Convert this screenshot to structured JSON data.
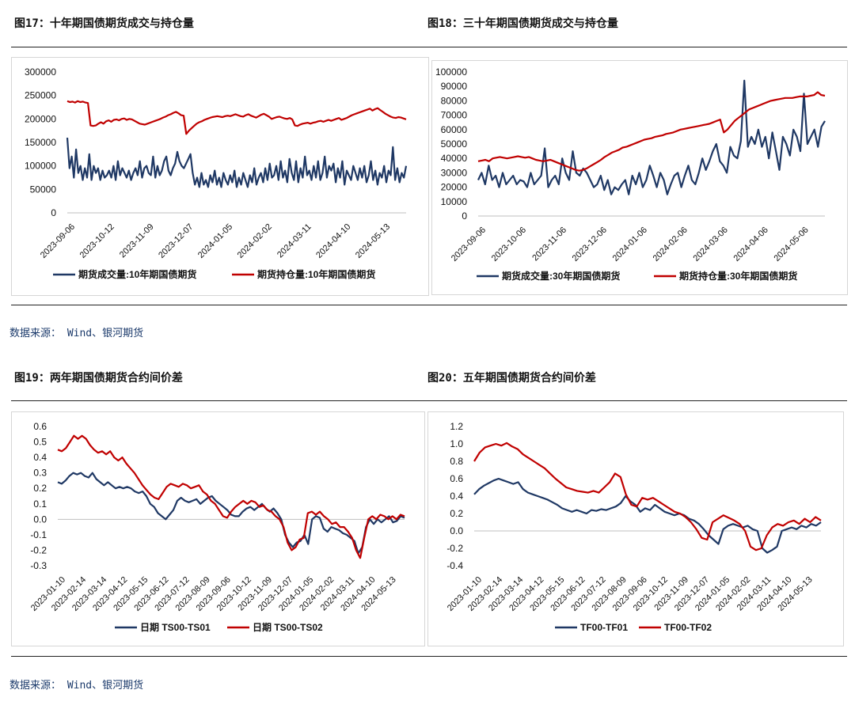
{
  "section1": {
    "left_title": "图17：十年期国债期货成交与持仓量",
    "right_title": "图18：三十年期国债期货成交与持仓量",
    "source": "数据来源： Wind、银河期货"
  },
  "section2": {
    "left_title": "图19：两年期国债期货合约间价差",
    "right_title": "图20：五年期国债期货合约间价差",
    "source": "数据来源： Wind、银河期货"
  },
  "colors": {
    "navy": "#1f3864",
    "red": "#c00000",
    "accent": "#1b3a6b"
  },
  "chart_data": [
    {
      "type": "line",
      "xlabels": [
        "2023-09-06",
        "2023-10-12",
        "2023-11-09",
        "2023-12-07",
        "2024-01-05",
        "2024-02-02",
        "2024-03-11",
        "2024-04-10",
        "2024-05-13"
      ],
      "ylim": [
        0,
        300000
      ],
      "yticks": [
        "300000",
        "250000",
        "200000",
        "150000",
        "100000",
        "50000",
        "0"
      ],
      "series": [
        {
          "name": "期货成交量:10年期国债期货",
          "color": "#1f3864",
          "values": [
            160000,
            95000,
            120000,
            75000,
            135000,
            85000,
            100000,
            70000,
            95000,
            75000,
            125000,
            70000,
            100000,
            85000,
            95000,
            70000,
            90000,
            75000,
            80000,
            90000,
            75000,
            100000,
            70000,
            110000,
            80000,
            95000,
            85000,
            75000,
            90000,
            70000,
            85000,
            95000,
            80000,
            110000,
            75000,
            95000,
            100000,
            85000,
            80000,
            120000,
            75000,
            100000,
            80000,
            90000,
            110000,
            120000,
            90000,
            80000,
            95000,
            105000,
            130000,
            110000,
            100000,
            95000,
            105000,
            115000,
            125000,
            85000,
            60000,
            75000,
            55000,
            85000,
            60000,
            70000,
            55000,
            80000,
            65000,
            90000,
            60000,
            75000,
            55000,
            85000,
            70000,
            60000,
            80000,
            65000,
            90000,
            55000,
            75000,
            60000,
            85000,
            70000,
            55000,
            80000,
            65000,
            95000,
            60000,
            75000,
            85000,
            65000,
            95000,
            70000,
            105000,
            75000,
            80000,
            100000,
            70000,
            110000,
            75000,
            90000,
            65000,
            115000,
            85000,
            70000,
            110000,
            65000,
            95000,
            75000,
            120000,
            80000,
            90000,
            70000,
            100000,
            75000,
            110000,
            70000,
            85000,
            120000,
            75000,
            100000,
            90000,
            105000,
            65000,
            95000,
            75000,
            110000,
            60000,
            90000,
            80000,
            70000,
            100000,
            85000,
            70000,
            95000,
            75000,
            100000,
            65000,
            80000,
            110000,
            70000,
            90000,
            60000,
            85000,
            75000,
            100000,
            65000,
            90000,
            80000,
            140000,
            70000,
            95000,
            65000,
            85000,
            75000,
            100000
          ]
        },
        {
          "name": "期货持仓量:10年期国债期货",
          "color": "#c00000",
          "values": [
            238000,
            236000,
            237000,
            235000,
            238000,
            236000,
            237000,
            235000,
            234000,
            186000,
            185000,
            186000,
            190000,
            193000,
            190000,
            195000,
            197000,
            194000,
            198000,
            199000,
            197000,
            200000,
            201000,
            198000,
            200000,
            199000,
            196000,
            193000,
            190000,
            189000,
            188000,
            190000,
            192000,
            194000,
            196000,
            198000,
            200000,
            203000,
            205000,
            208000,
            210000,
            213000,
            215000,
            212000,
            208000,
            207000,
            168000,
            175000,
            180000,
            185000,
            190000,
            193000,
            195000,
            198000,
            200000,
            202000,
            204000,
            205000,
            206000,
            205000,
            204000,
            206000,
            207000,
            206000,
            208000,
            210000,
            208000,
            206000,
            205000,
            208000,
            210000,
            207000,
            205000,
            203000,
            206000,
            209000,
            211000,
            208000,
            205000,
            200000,
            202000,
            204000,
            205000,
            203000,
            201000,
            200000,
            202000,
            199000,
            186000,
            185000,
            188000,
            190000,
            191000,
            192000,
            190000,
            192000,
            193000,
            195000,
            196000,
            194000,
            196000,
            198000,
            196000,
            198000,
            200000,
            202000,
            198000,
            200000,
            202000,
            205000,
            208000,
            210000,
            212000,
            214000,
            216000,
            218000,
            220000,
            222000,
            218000,
            221000,
            223000,
            219000,
            215000,
            211000,
            208000,
            205000,
            203000,
            202000,
            204000,
            203000,
            201000,
            199000
          ]
        }
      ],
      "legend_position": "bottom"
    },
    {
      "type": "line",
      "xlabels": [
        "2023-09-06",
        "2023-10-06",
        "2023-11-06",
        "2023-12-06",
        "2024-01-06",
        "2024-02-06",
        "2024-03-06",
        "2024-04-06",
        "2024-05-06"
      ],
      "ylim": [
        0,
        100000
      ],
      "yticks": [
        "100000",
        "90000",
        "80000",
        "70000",
        "60000",
        "50000",
        "40000",
        "30000",
        "20000",
        "10000",
        "0"
      ],
      "series": [
        {
          "name": "期货成交量:30年期国债期货",
          "color": "#1f3864",
          "values": [
            25000,
            30000,
            22000,
            35000,
            25000,
            28000,
            20000,
            30000,
            22000,
            25000,
            28000,
            22000,
            25000,
            24000,
            20000,
            30000,
            22000,
            25000,
            28000,
            47000,
            20000,
            25000,
            28000,
            22000,
            40000,
            30000,
            25000,
            45000,
            30000,
            28000,
            33000,
            30000,
            25000,
            20000,
            22000,
            28000,
            18000,
            25000,
            15000,
            20000,
            18000,
            22000,
            25000,
            15000,
            28000,
            22000,
            30000,
            20000,
            25000,
            35000,
            28000,
            20000,
            30000,
            25000,
            15000,
            22000,
            28000,
            30000,
            20000,
            28000,
            35000,
            25000,
            22000,
            30000,
            40000,
            32000,
            38000,
            45000,
            50000,
            38000,
            35000,
            30000,
            48000,
            42000,
            40000,
            52000,
            94000,
            48000,
            55000,
            50000,
            60000,
            48000,
            55000,
            40000,
            58000,
            45000,
            32000,
            55000,
            50000,
            42000,
            60000,
            55000,
            45000,
            85000,
            50000,
            55000,
            60000,
            48000,
            62000,
            66000
          ]
        },
        {
          "name": "期货持仓量:30年期国债期货",
          "color": "#c00000",
          "values": [
            38000,
            38500,
            39000,
            38000,
            40000,
            40500,
            41000,
            40500,
            40000,
            40500,
            41000,
            41500,
            41000,
            40500,
            41000,
            40000,
            39000,
            38500,
            38000,
            38500,
            39000,
            38000,
            37000,
            36000,
            35000,
            34000,
            33000,
            32000,
            31500,
            32000,
            33000,
            34500,
            36000,
            37500,
            39000,
            41000,
            42500,
            44000,
            45000,
            46000,
            47500,
            48000,
            49000,
            50000,
            51000,
            52000,
            53000,
            53500,
            54000,
            55000,
            55500,
            56000,
            57000,
            57500,
            58000,
            59000,
            60000,
            60500,
            61000,
            61500,
            62000,
            62500,
            63000,
            63500,
            64000,
            65000,
            66000,
            67000,
            58000,
            60000,
            63000,
            66000,
            68000,
            70000,
            72000,
            74000,
            75000,
            76000,
            77000,
            78000,
            79000,
            80000,
            80500,
            81000,
            81500,
            82000,
            82000,
            82000,
            82500,
            83000,
            83000,
            83000,
            83500,
            84000,
            86000,
            84000,
            83500
          ]
        }
      ],
      "legend_position": "bottom"
    },
    {
      "type": "line",
      "xlabels": [
        "2023-01-10",
        "2023-02-14",
        "2023-03-14",
        "2023-04-12",
        "2023-05-15",
        "2023-06-12",
        "2023-07-12",
        "2023-08-09",
        "2023-09-06",
        "2023-10-12",
        "2023-11-09",
        "2023-12-07",
        "2024-01-05",
        "2024-02-02",
        "2024-03-11",
        "2024-04-10",
        "2024-05-13"
      ],
      "ylim": [
        -0.3,
        0.6
      ],
      "yticks": [
        "0.6",
        "0.5",
        "0.4",
        "0.3",
        "0.2",
        "0.1",
        "0.0",
        "-0.1",
        "-0.2",
        "-0.3"
      ],
      "series": [
        {
          "name": "日期 TS00-TS01",
          "color": "#1f3864",
          "values": [
            0.24,
            0.23,
            0.25,
            0.28,
            0.3,
            0.29,
            0.3,
            0.28,
            0.27,
            0.3,
            0.26,
            0.24,
            0.22,
            0.24,
            0.22,
            0.2,
            0.21,
            0.2,
            0.21,
            0.2,
            0.18,
            0.17,
            0.18,
            0.15,
            0.1,
            0.08,
            0.04,
            0.02,
            0.0,
            0.03,
            0.06,
            0.12,
            0.14,
            0.12,
            0.11,
            0.12,
            0.13,
            0.1,
            0.12,
            0.14,
            0.15,
            0.12,
            0.1,
            0.08,
            0.06,
            0.03,
            0.02,
            0.02,
            0.05,
            0.07,
            0.08,
            0.06,
            0.08,
            0.1,
            0.07,
            0.05,
            0.07,
            0.04,
            0.0,
            -0.1,
            -0.15,
            -0.18,
            -0.15,
            -0.14,
            -0.1,
            -0.16,
            0.0,
            0.02,
            0.01,
            -0.06,
            -0.08,
            -0.05,
            -0.06,
            -0.07,
            -0.09,
            -0.1,
            -0.12,
            -0.14,
            -0.22,
            -0.18,
            -0.05,
            0.0,
            -0.03,
            0.0,
            -0.02,
            0.0,
            0.02,
            -0.02,
            -0.01,
            0.02,
            0.01
          ]
        },
        {
          "name": "日期 TS00-TS02",
          "color": "#c00000",
          "values": [
            0.45,
            0.44,
            0.46,
            0.5,
            0.54,
            0.52,
            0.54,
            0.52,
            0.48,
            0.45,
            0.43,
            0.44,
            0.42,
            0.44,
            0.4,
            0.38,
            0.4,
            0.36,
            0.33,
            0.3,
            0.26,
            0.22,
            0.19,
            0.16,
            0.14,
            0.13,
            0.17,
            0.21,
            0.23,
            0.22,
            0.21,
            0.23,
            0.22,
            0.2,
            0.21,
            0.22,
            0.18,
            0.16,
            0.12,
            0.1,
            0.06,
            0.02,
            0.01,
            0.05,
            0.08,
            0.1,
            0.12,
            0.1,
            0.12,
            0.11,
            0.08,
            0.09,
            0.06,
            0.05,
            0.02,
            0.0,
            -0.05,
            -0.15,
            -0.2,
            -0.18,
            -0.13,
            -0.12,
            0.04,
            0.05,
            0.03,
            0.05,
            0.02,
            0.0,
            -0.03,
            -0.02,
            -0.05,
            -0.05,
            -0.08,
            -0.12,
            -0.2,
            -0.25,
            -0.12,
            0.0,
            0.02,
            0.0,
            0.03,
            0.02,
            0.0,
            0.02,
            0.0,
            0.03,
            0.02
          ]
        }
      ],
      "legend_position": "bottom"
    },
    {
      "type": "line",
      "xlabels": [
        "2023-01-10",
        "2023-02-14",
        "2023-03-14",
        "2023-04-12",
        "2023-05-15",
        "2023-06-12",
        "2023-07-12",
        "2023-08-09",
        "2023-09-06",
        "2023-10-12",
        "2023-11-09",
        "2023-12-07",
        "2024-01-05",
        "2024-02-02",
        "2024-03-11",
        "2024-04-10",
        "2024-05-13"
      ],
      "ylim": [
        -0.4,
        1.2
      ],
      "yticks": [
        "1.2",
        "1.0",
        "0.8",
        "0.6",
        "0.4",
        "0.2",
        "0.0",
        "-0.2",
        "-0.4"
      ],
      "series": [
        {
          "name": "TF00-TF01",
          "color": "#1f3864",
          "values": [
            0.42,
            0.48,
            0.52,
            0.55,
            0.58,
            0.6,
            0.58,
            0.56,
            0.54,
            0.56,
            0.48,
            0.44,
            0.42,
            0.4,
            0.38,
            0.36,
            0.33,
            0.3,
            0.26,
            0.24,
            0.22,
            0.24,
            0.22,
            0.2,
            0.24,
            0.23,
            0.25,
            0.24,
            0.26,
            0.28,
            0.32,
            0.4,
            0.34,
            0.3,
            0.22,
            0.26,
            0.24,
            0.3,
            0.26,
            0.22,
            0.2,
            0.18,
            0.2,
            0.18,
            0.14,
            0.12,
            0.08,
            0.02,
            -0.05,
            -0.1,
            -0.15,
            0.02,
            0.06,
            0.08,
            0.06,
            0.04,
            0.06,
            0.02,
            0.0,
            -0.2,
            -0.25,
            -0.22,
            -0.18,
            0.0,
            0.02,
            0.04,
            0.02,
            0.06,
            0.04,
            0.08,
            0.06,
            0.1
          ]
        },
        {
          "name": "TF00-TF02",
          "color": "#c00000",
          "values": [
            0.8,
            0.9,
            0.96,
            0.98,
            1.0,
            0.98,
            1.01,
            0.97,
            0.94,
            0.88,
            0.84,
            0.8,
            0.76,
            0.72,
            0.66,
            0.6,
            0.55,
            0.5,
            0.48,
            0.46,
            0.45,
            0.44,
            0.46,
            0.44,
            0.5,
            0.56,
            0.66,
            0.62,
            0.42,
            0.3,
            0.28,
            0.38,
            0.36,
            0.38,
            0.34,
            0.3,
            0.26,
            0.22,
            0.2,
            0.16,
            0.1,
            0.02,
            -0.08,
            -0.1,
            0.1,
            0.14,
            0.18,
            0.15,
            0.12,
            0.08,
            0.0,
            -0.18,
            -0.22,
            -0.2,
            -0.05,
            0.04,
            0.08,
            0.06,
            0.1,
            0.12,
            0.08,
            0.14,
            0.1,
            0.16,
            0.12
          ]
        }
      ],
      "legend_position": "bottom"
    }
  ]
}
